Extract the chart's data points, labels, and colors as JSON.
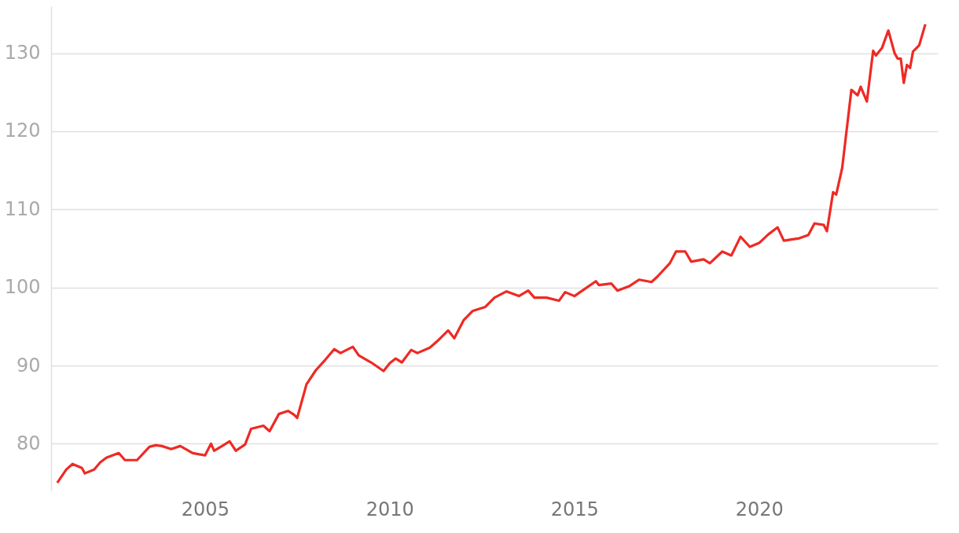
{
  "chart_data": {
    "type": "line",
    "xlim": [
      "2000-11",
      "2024-11"
    ],
    "xticks": [
      "2005",
      "2010",
      "2015",
      "2020"
    ],
    "ylim": [
      74,
      136
    ],
    "yticks": [
      80,
      90,
      100,
      110,
      120,
      130
    ],
    "grid": "y",
    "marker": "none",
    "line_style": "solid",
    "x": [
      "2001-01",
      "2001-04",
      "2001-06",
      "2001-09",
      "2001-10",
      "2002-01",
      "2002-03",
      "2002-05",
      "2002-09",
      "2002-11",
      "2003-03",
      "2003-07",
      "2003-09",
      "2003-11",
      "2004-02",
      "2004-05",
      "2004-09",
      "2005-01",
      "2005-03",
      "2005-04",
      "2005-07",
      "2005-09",
      "2005-11",
      "2006-02",
      "2006-04",
      "2006-08",
      "2006-10",
      "2007-01",
      "2007-04",
      "2007-06",
      "2007-07",
      "2007-10",
      "2008-01",
      "2008-04",
      "2008-07",
      "2008-09",
      "2009-01",
      "2009-03",
      "2009-07",
      "2009-11",
      "2010-01",
      "2010-03",
      "2010-05",
      "2010-08",
      "2010-10",
      "2011-02",
      "2011-05",
      "2011-08",
      "2011-10",
      "2012-01",
      "2012-04",
      "2012-08",
      "2012-11",
      "2013-03",
      "2013-07",
      "2013-10",
      "2013-12",
      "2014-04",
      "2014-08",
      "2014-10",
      "2015-01",
      "2015-04",
      "2015-08",
      "2015-09",
      "2016-01",
      "2016-03",
      "2016-07",
      "2016-10",
      "2017-02",
      "2017-04",
      "2017-08",
      "2017-10",
      "2018-01",
      "2018-03",
      "2018-07",
      "2018-09",
      "2019-01",
      "2019-04",
      "2019-07",
      "2019-10",
      "2020-01",
      "2020-04",
      "2020-07",
      "2020-09",
      "2021-02",
      "2021-05",
      "2021-07",
      "2021-10",
      "2021-11",
      "2022-01",
      "2022-02",
      "2022-04",
      "2022-07",
      "2022-09",
      "2022-10",
      "2022-12",
      "2023-02",
      "2023-03",
      "2023-05",
      "2023-07",
      "2023-09",
      "2023-10",
      "2023-11",
      "2023-12",
      "2024-01",
      "2024-02",
      "2024-03",
      "2024-05",
      "2024-07"
    ],
    "series": [
      {
        "color": "#ee2a24",
        "values": [
          75.0,
          76.7,
          77.4,
          76.9,
          76.2,
          76.7,
          77.6,
          78.2,
          78.8,
          77.9,
          77.9,
          79.6,
          79.8,
          79.7,
          79.3,
          79.7,
          78.8,
          78.5,
          80.0,
          79.1,
          79.8,
          80.3,
          79.1,
          79.9,
          81.9,
          82.3,
          81.6,
          83.8,
          84.2,
          83.7,
          83.3,
          87.6,
          89.4,
          90.7,
          92.1,
          91.6,
          92.4,
          91.3,
          90.4,
          89.3,
          90.3,
          90.9,
          90.4,
          92.0,
          91.6,
          92.3,
          93.3,
          94.5,
          93.5,
          95.8,
          97.0,
          97.5,
          98.7,
          99.5,
          98.9,
          99.6,
          98.7,
          98.7,
          98.3,
          99.4,
          98.9,
          99.7,
          100.8,
          100.3,
          100.5,
          99.6,
          100.2,
          101.0,
          100.7,
          101.4,
          103.1,
          104.6,
          104.6,
          103.3,
          103.6,
          103.1,
          104.6,
          104.1,
          106.5,
          105.2,
          105.7,
          106.8,
          107.7,
          106.0,
          106.3,
          106.7,
          108.2,
          108.0,
          107.2,
          112.2,
          111.9,
          115.3,
          125.3,
          124.6,
          125.7,
          123.8,
          130.3,
          129.7,
          130.7,
          132.9,
          130.0,
          129.3,
          129.3,
          126.2,
          128.5,
          128.1,
          130.2,
          131.0,
          133.7
        ]
      }
    ]
  }
}
